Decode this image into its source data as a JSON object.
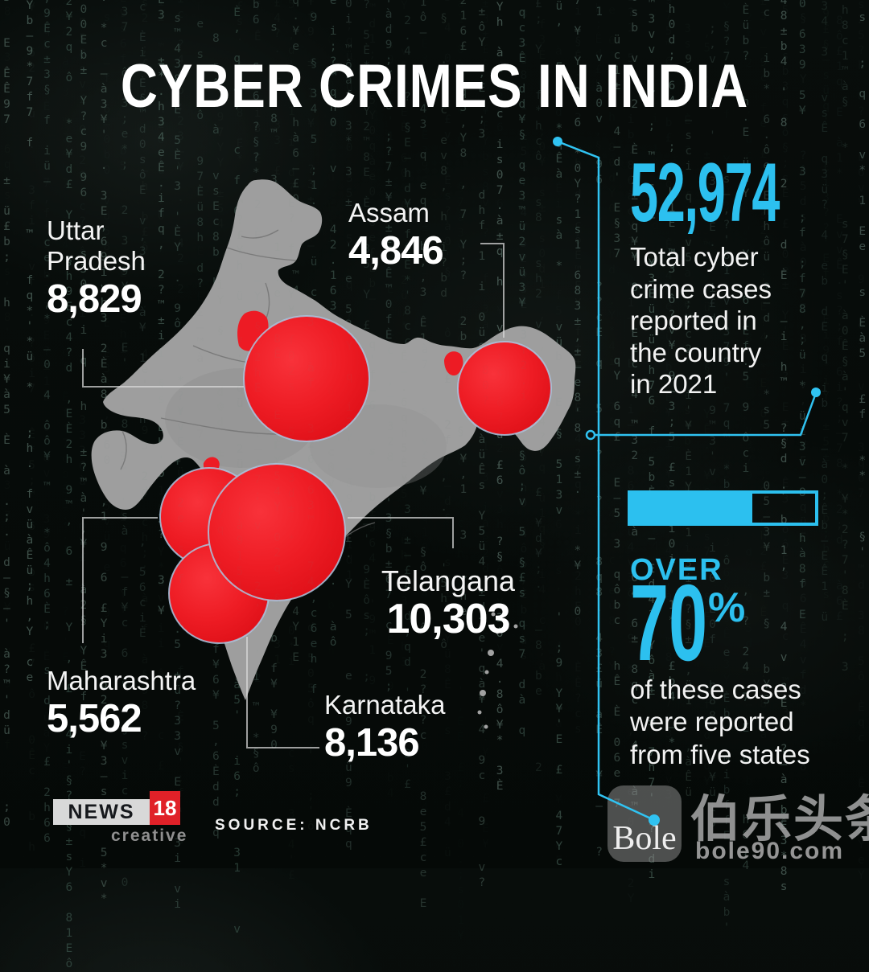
{
  "title": "CYBER CRIMES IN INDIA",
  "map": {
    "states": [
      {
        "name": "Uttar Pradesh",
        "value": "8,829"
      },
      {
        "name": "Assam",
        "value": "4,846"
      },
      {
        "name": "Telangana",
        "value": "10,303"
      },
      {
        "name": "Maharashtra",
        "value": "5,562"
      },
      {
        "name": "Karnataka",
        "value": "8,136"
      }
    ]
  },
  "right_panel": {
    "total_number": "52,974",
    "total_caption": "Total cyber\ncrime cases\nreported in\nthe country\nin 2021",
    "progress": {
      "fill_percent": 66
    },
    "over_label": "OVER",
    "percent_number": "70",
    "percent_sign": "%",
    "five_states_caption": "of these cases\nwere reported\nfrom five states"
  },
  "footer": {
    "logo": {
      "news": "NEWS",
      "number": "18",
      "sub": "creative"
    },
    "source": "SOURCE: NCRB"
  },
  "watermark": {
    "logo_text": "Bole",
    "cjk": "伯乐头条",
    "site": "bole90.com"
  },
  "colors": {
    "accent_cyan": "#2cc0ef",
    "bubble_red": "#ed1b24",
    "map_gray": "#9e9e9e",
    "background": "#070c0a"
  },
  "chart_data": {
    "type": "bubble_map",
    "title": "CYBER CRIMES IN INDIA",
    "geography": "India",
    "year_shown": "2021",
    "total_cases": 52974,
    "states": [
      {
        "state": "Uttar Pradesh",
        "cases": 8829
      },
      {
        "state": "Assam",
        "cases": 4846
      },
      {
        "state": "Telangana",
        "cases": 10303
      },
      {
        "state": "Maharashtra",
        "cases": 5562
      },
      {
        "state": "Karnataka",
        "cases": 8136
      }
    ],
    "annotations": [
      "52,974 Total cyber crime cases reported in the country in 2021",
      "OVER 70% of these cases were reported from five states"
    ],
    "progress_bar_fill_percent": 66,
    "source": "SOURCE: NCRB",
    "legend_position": "none"
  }
}
